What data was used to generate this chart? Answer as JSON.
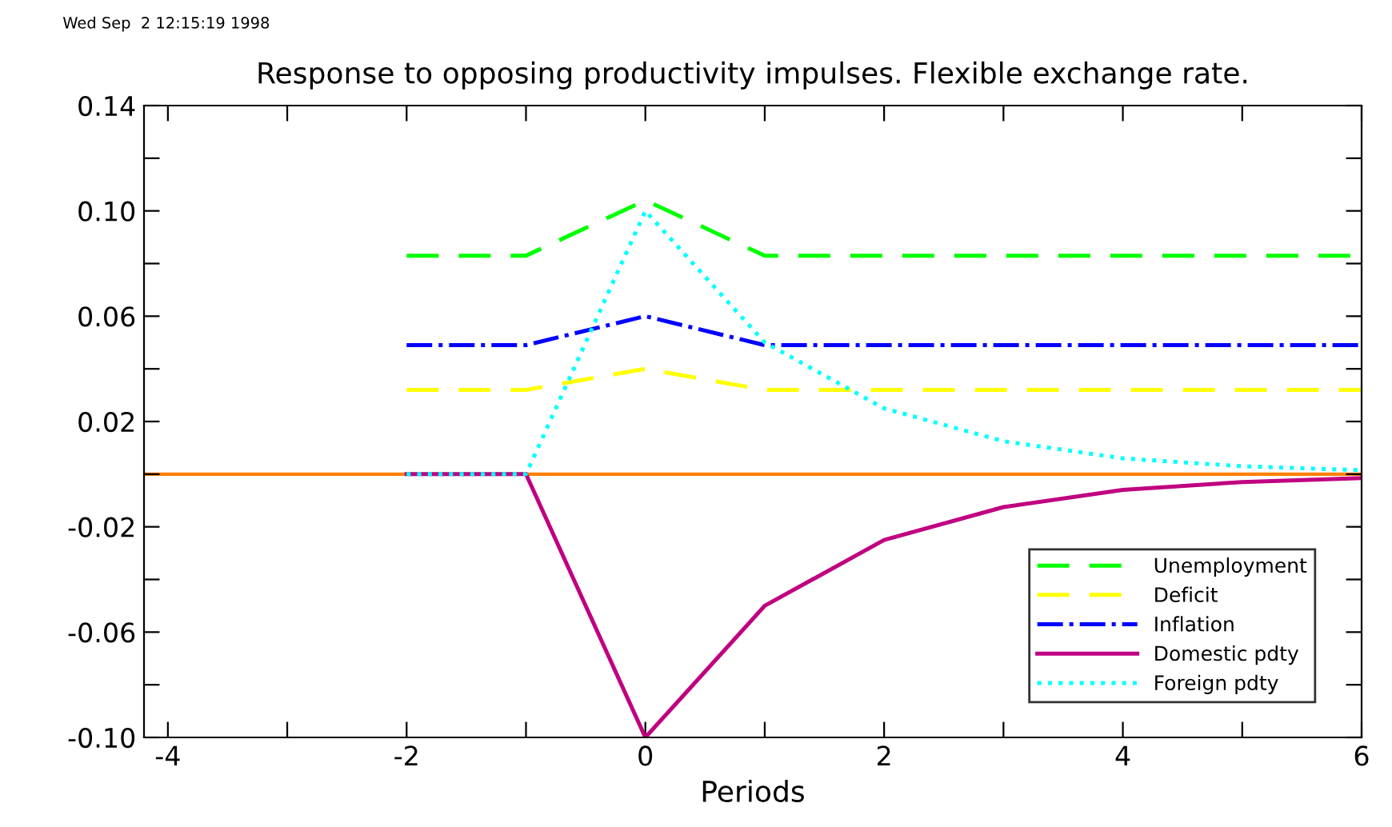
{
  "chart_data": {
    "type": "line",
    "title": "Response to opposing productivity impulses. Flexible exchange rate.",
    "xlabel": "Periods",
    "annotations": [
      "Wed Sep  2 12:15:19 1998"
    ],
    "x": [
      -2,
      -1,
      0,
      1,
      2,
      3,
      4,
      5,
      6
    ],
    "series": [
      {
        "name": "Unemployment",
        "color": "#00ff00",
        "line_style": "dashed",
        "values": [
          0.083,
          0.083,
          0.104,
          0.083,
          0.083,
          0.083,
          0.083,
          0.083,
          0.083
        ]
      },
      {
        "name": "Deficit",
        "color": "#ffff00",
        "line_style": "dashed",
        "values": [
          0.032,
          0.032,
          0.04,
          0.032,
          0.032,
          0.032,
          0.032,
          0.032,
          0.032
        ]
      },
      {
        "name": "Inflation",
        "color": "#0000ff",
        "line_style": "dashdot",
        "values": [
          0.049,
          0.049,
          0.06,
          0.049,
          0.049,
          0.049,
          0.049,
          0.049,
          0.049
        ]
      },
      {
        "name": "Domestic pdty",
        "color": "#c00080",
        "line_style": "solid",
        "values": [
          0,
          0,
          -0.1,
          -0.05,
          -0.025,
          -0.0125,
          -0.006,
          -0.003,
          -0.0015
        ]
      },
      {
        "name": "Foreign pdty",
        "color": "#00ffff",
        "line_style": "dotted",
        "values": [
          0,
          0,
          0.1,
          0.05,
          0.025,
          0.0125,
          0.006,
          0.003,
          0.0015
        ]
      }
    ],
    "ref_lines": [
      {
        "axis": "y",
        "value": 0,
        "color": "#ff8000"
      }
    ],
    "xlim": [
      -4.2,
      6
    ],
    "xticks": [
      -4,
      {
        "value": -3,
        "label": null
      },
      -2,
      {
        "value": -1,
        "label": null
      },
      0,
      {
        "value": 1,
        "label": null
      },
      2,
      {
        "value": 3,
        "label": null
      },
      4,
      {
        "value": 5,
        "label": null
      },
      6
    ],
    "ylim": [
      -0.1,
      0.14
    ],
    "yticks": [
      {
        "value": -0.1,
        "label": "-0.10"
      },
      {
        "value": -0.08,
        "label": null
      },
      {
        "value": -0.06,
        "label": "-0.06"
      },
      {
        "value": -0.04,
        "label": null
      },
      {
        "value": -0.02,
        "label": "-0.02"
      },
      {
        "value": 0,
        "label": null
      },
      {
        "value": 0.02,
        "label": "0.02"
      },
      {
        "value": 0.04,
        "label": null
      },
      {
        "value": 0.06,
        "label": "0.06"
      },
      {
        "value": 0.08,
        "label": null
      },
      {
        "value": 0.1,
        "label": "0.10"
      },
      {
        "value": 0.12,
        "label": null
      },
      {
        "value": 0.14,
        "label": "0.14"
      }
    ],
    "grid": false,
    "legend": "bottom right",
    "marker": "none"
  }
}
